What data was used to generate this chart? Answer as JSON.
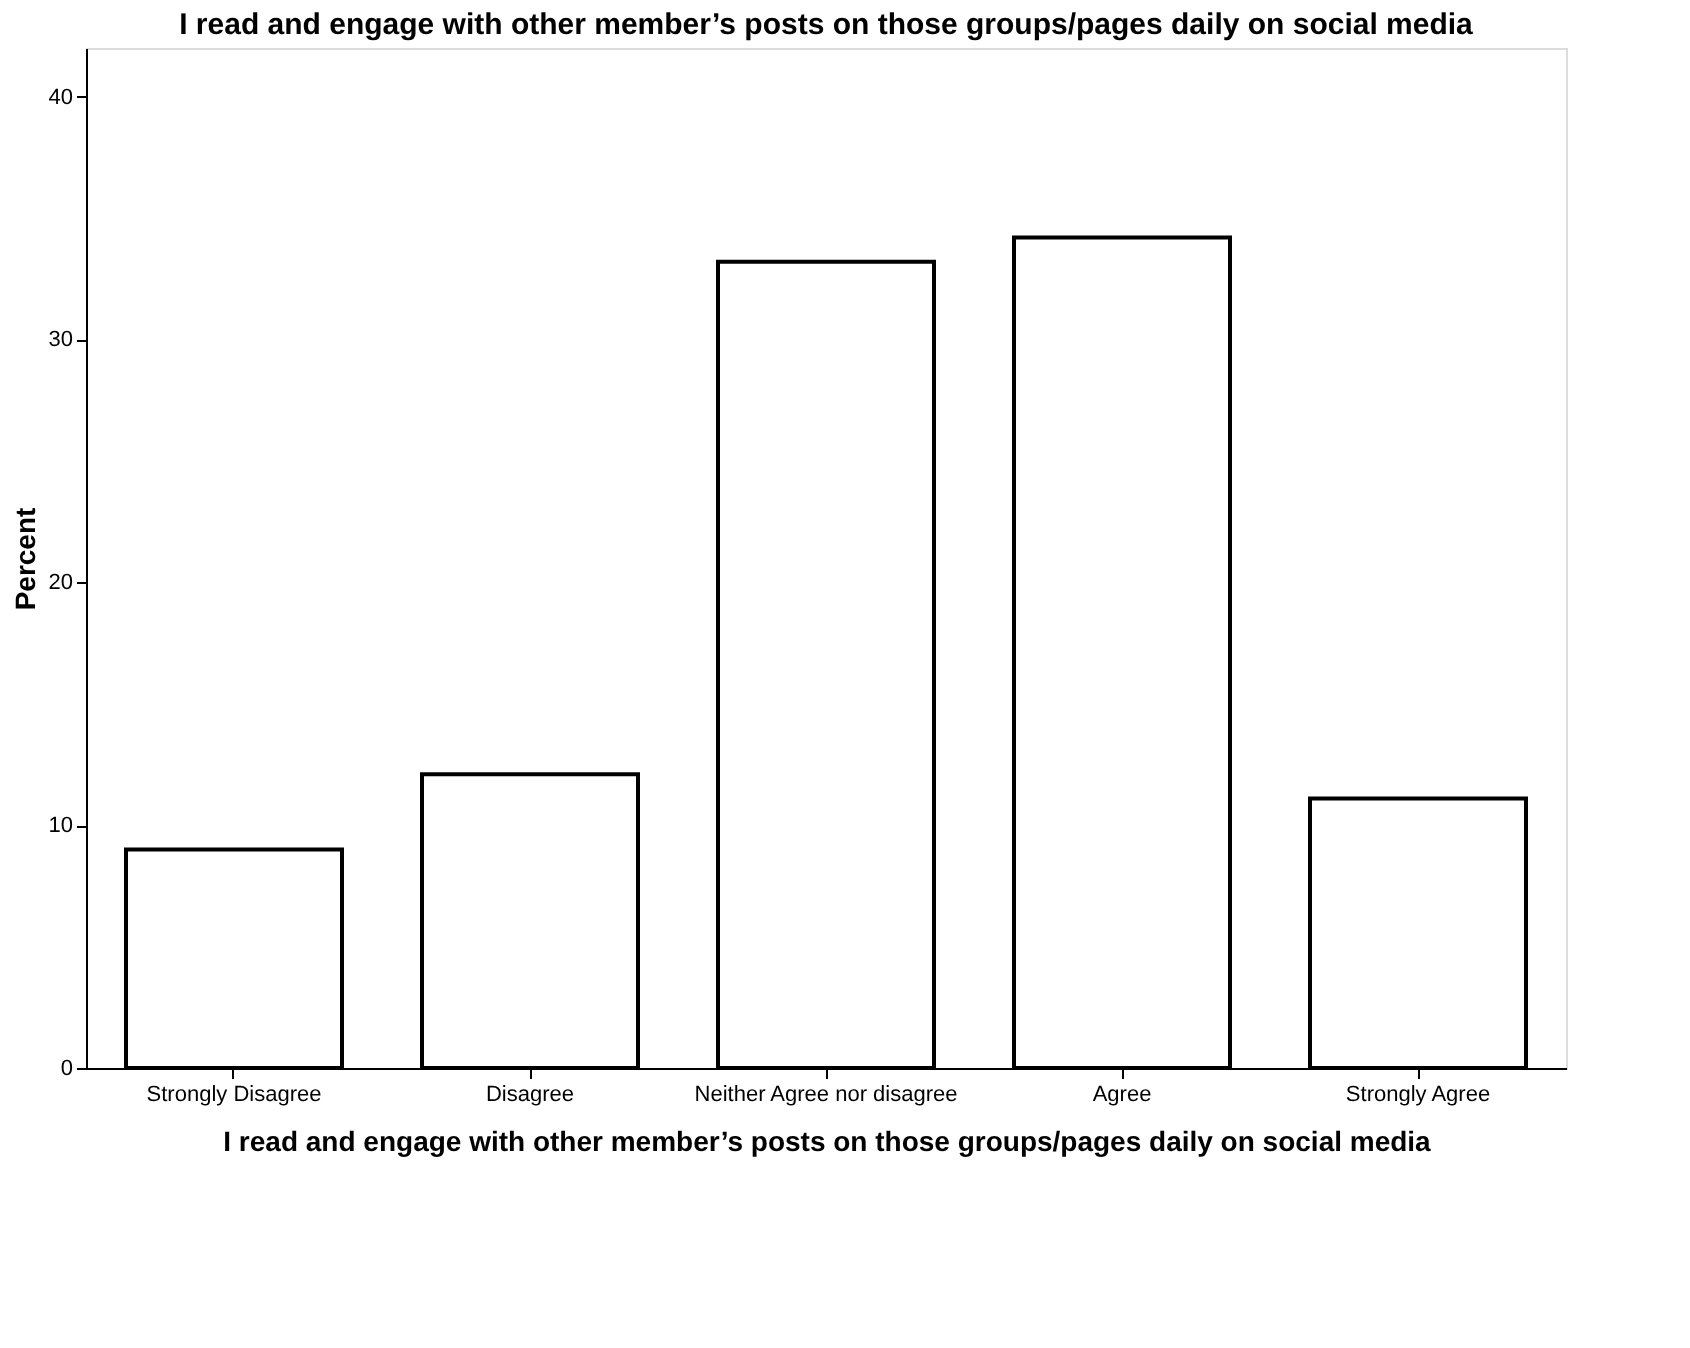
{
  "chart_data": {
    "type": "bar",
    "title": "I read and  engage with other member’s posts on those groups/pages daily on social media",
    "xlabel": "I read and  engage with other member’s posts on those groups/pages daily on social media",
    "ylabel": "Percent",
    "categories": [
      "Strongly Disagree",
      "Disagree",
      "Neither Agree nor disagree",
      "Agree",
      "Strongly Agree"
    ],
    "values": [
      9.0,
      12.1,
      33.2,
      34.2,
      11.1
    ],
    "color": "#ffffff",
    "ylim": [
      0,
      42
    ],
    "yticks": [
      0,
      10,
      20,
      30,
      40
    ],
    "grid": false
  }
}
